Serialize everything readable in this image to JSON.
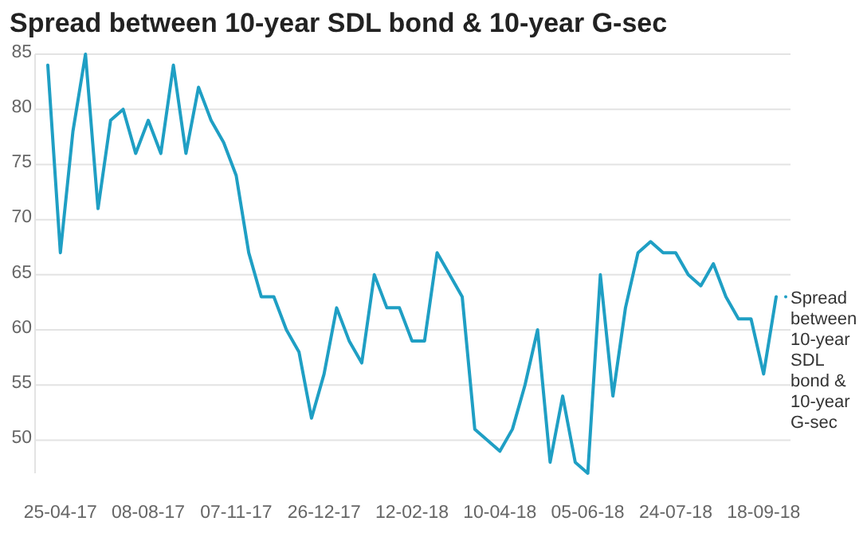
{
  "chart_data": {
    "type": "line",
    "title": "Spread between 10-year SDL bond & 10-year G-sec",
    "categories": [
      null,
      "25-04-17",
      null,
      null,
      null,
      null,
      null,
      null,
      "08-08-17",
      null,
      null,
      null,
      null,
      null,
      null,
      "07-11-17",
      null,
      null,
      null,
      null,
      null,
      null,
      "26-12-17",
      null,
      null,
      null,
      null,
      null,
      null,
      "12-02-18",
      null,
      null,
      null,
      null,
      null,
      null,
      "10-04-18",
      null,
      null,
      null,
      null,
      null,
      null,
      "05-06-18",
      null,
      null,
      null,
      null,
      null,
      null,
      "24-07-18",
      null,
      null,
      null,
      null,
      null,
      null,
      "18-09-18",
      null
    ],
    "series": [
      {
        "name": "Spread between 10-year SDL bond & 10-year G-sec",
        "color": "#1f9fc4",
        "values": [
          84,
          67,
          78,
          85,
          71,
          79,
          80,
          76,
          79,
          76,
          84,
          76,
          82,
          79,
          77,
          74,
          67,
          63,
          63,
          60,
          58,
          52,
          56,
          62,
          59,
          57,
          65,
          62,
          62,
          59,
          59,
          67,
          65,
          63,
          51,
          50,
          49,
          51,
          55,
          60,
          48,
          54,
          48,
          47,
          65,
          54,
          62,
          67,
          68,
          67,
          67,
          65,
          64,
          66,
          63,
          61,
          61,
          56,
          63
        ]
      }
    ],
    "ylim": [
      47,
      85
    ],
    "yticks": [
      50,
      55,
      60,
      65,
      70,
      75,
      80,
      85
    ],
    "grid": "y",
    "legend": "right",
    "marker": "none",
    "line_style": "solid"
  }
}
